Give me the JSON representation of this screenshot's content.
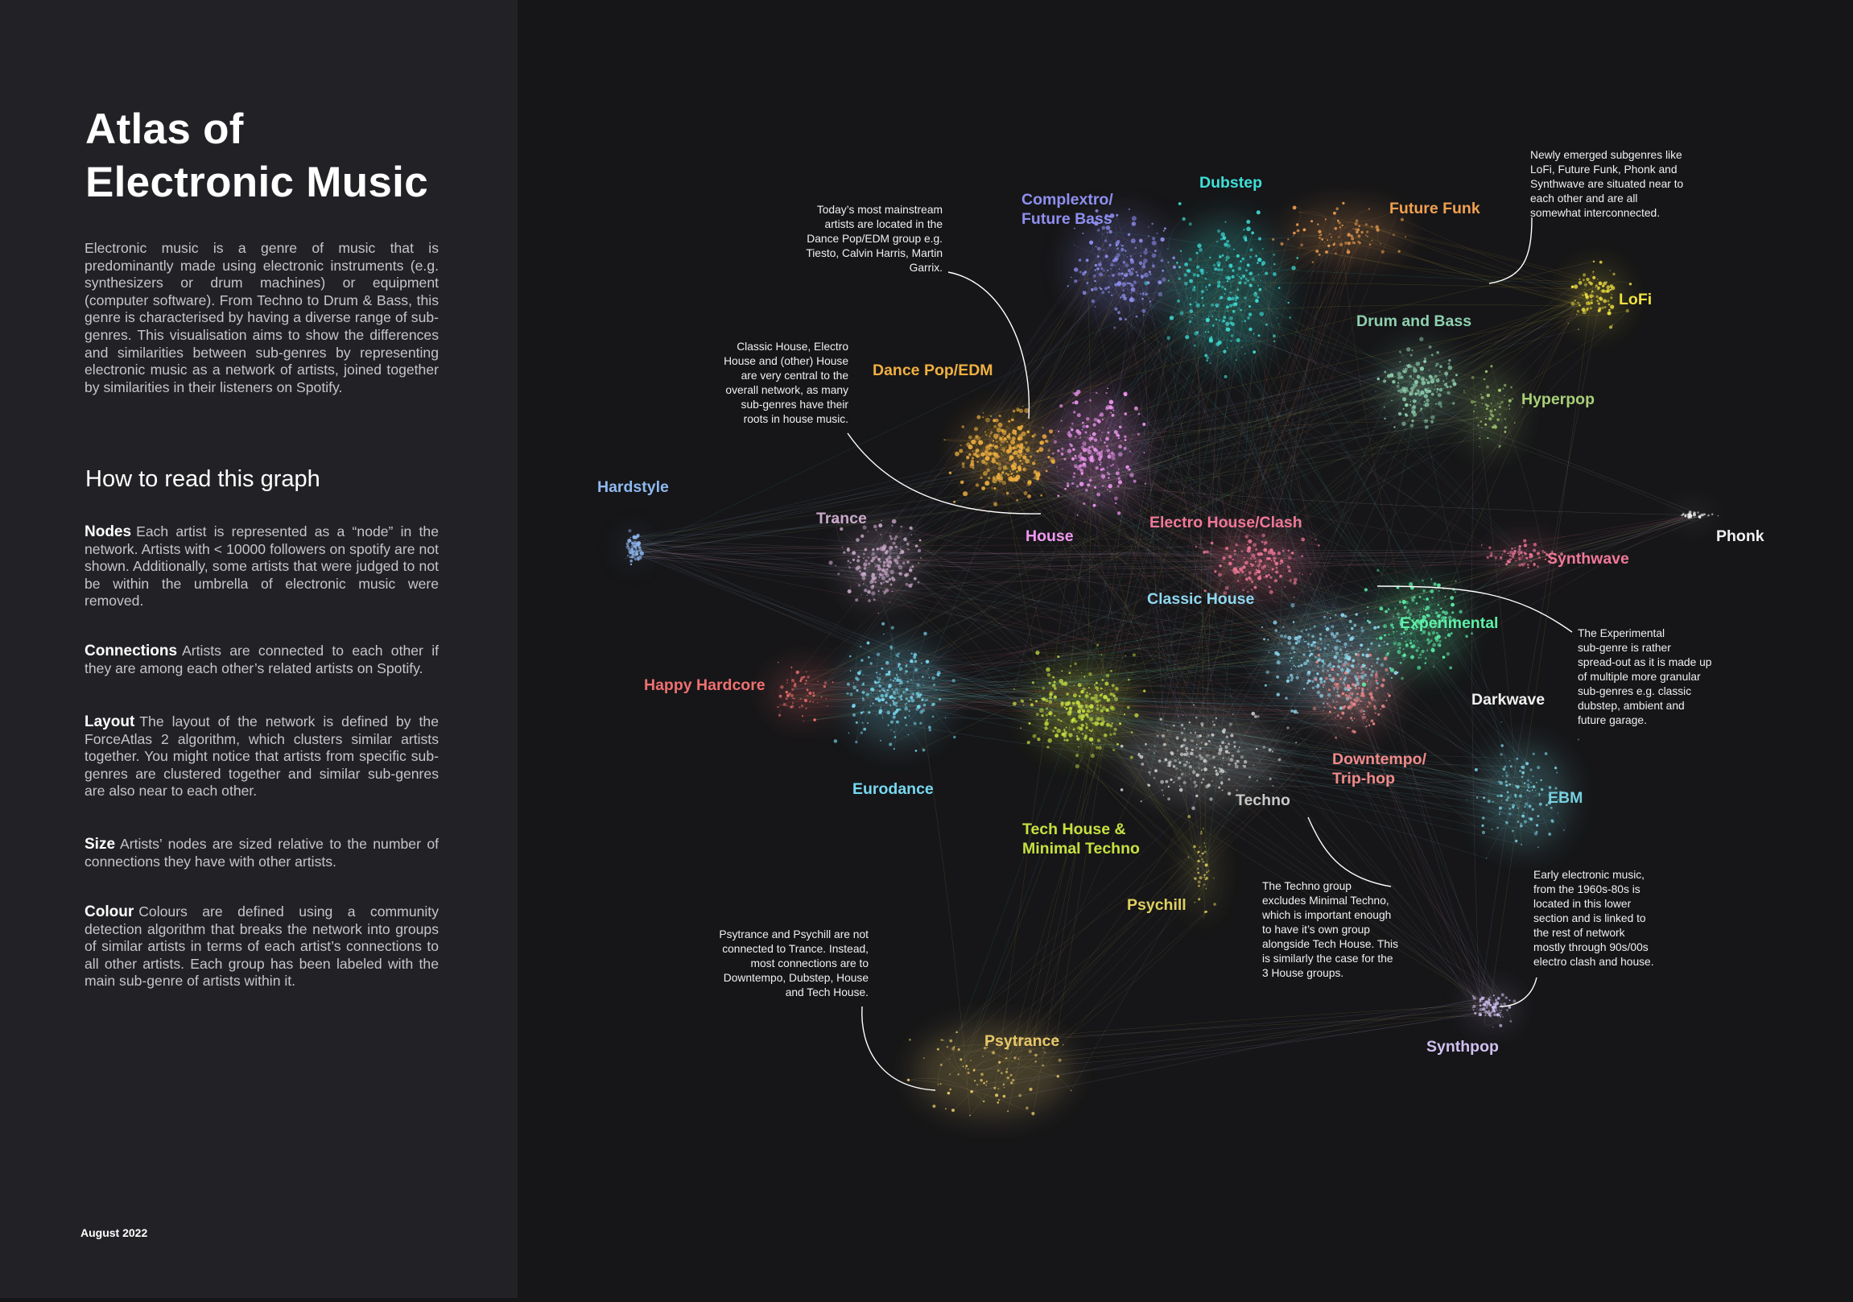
{
  "sidebar": {
    "title_line1": "Atlas of",
    "title_line2": "Electronic Music",
    "intro": "Electronic music is a genre of music that is predominantly made using electronic instruments (e.g. synthesizers or drum machines) or equipment (computer software). From Techno to Drum & Bass, this genre is characterised by having a diverse range of sub-genres. This visualisation aims to show the differences and similarities between sub-genres by representing electronic music as a network of artists, joined together by similarities in their listeners on Spotify.",
    "how_heading": "How to read this graph",
    "sections": [
      {
        "term": "Nodes",
        "text": "Each artist is represented as a “node” in the network. Artists with < 10000 followers on spotify are not shown. Additionally, some artists that were judged to not be within the umbrella of electronic music were removed."
      },
      {
        "term": "Connections",
        "text": "Artists are connected to each other if they are among each other’s related artists on Spotify."
      },
      {
        "term": "Layout",
        "text": "The layout of the network is defined by the ForceAtlas 2 algorithm, which clusters similar artists together. You might notice that artists from specific sub-genres are clustered together and similar sub-genres are also near to each other."
      },
      {
        "term": "Size",
        "text": "Artists’ nodes are sized relative to the number of connections they have with other artists."
      },
      {
        "term": "Colour",
        "text": "Colours are defined using a community detection algorithm that breaks the network into groups of similar artists in terms of each artist’s connections to all other artists. Each group has been labeled with the main sub-genre of artists within it."
      }
    ],
    "date": "August 2022"
  },
  "genres": {
    "complextro_l1": "Complextro/",
    "complextro_l2": "Future Bass",
    "dubstep": "Dubstep",
    "future_funk": "Future Funk",
    "lofi": "LoFi",
    "drum_and_bass": "Drum and Bass",
    "hyperpop": "Hyperpop",
    "dance_pop": "Dance Pop/EDM",
    "hardstyle": "Hardstyle",
    "trance": "Trance",
    "house": "House",
    "electro_house": "Electro House/Clash",
    "phonk": "Phonk",
    "synthwave": "Synthwave",
    "classic_house": "Classic House",
    "experimental": "Experimental",
    "happy_hardcore": "Happy Hardcore",
    "darkwave": "Darkwave",
    "downtempo_l1": "Downtempo/",
    "downtempo_l2": "Trip-hop",
    "eurodance": "Eurodance",
    "ebm": "EBM",
    "techno": "Techno",
    "tech_house_l1": "Tech House &",
    "tech_house_l2": "Minimal Techno",
    "psychill": "Psychill",
    "psytrance": "Psytrance",
    "synthpop": "Synthpop"
  },
  "colors": {
    "complextro": "#8f8ff0",
    "dubstep": "#3ee0d8",
    "future_funk": "#f0a050",
    "lofi": "#f0e040",
    "drum_and_bass": "#8fd0b0",
    "hyperpop": "#a8d078",
    "dance_pop": "#f0b040",
    "hardstyle": "#8fb8f0",
    "trance": "#c8a8c8",
    "house": "#f098f0",
    "electro_house": "#f07898",
    "phonk": "#f0f0f0",
    "synthwave": "#f07898",
    "classic_house": "#8fd8f0",
    "experimental": "#5ef0a8",
    "happy_hardcore": "#f07070",
    "darkwave": "#f0f0f0",
    "downtempo": "#f08a8a",
    "eurodance": "#78d8f0",
    "ebm": "#78d0e0",
    "techno": "#c8c8c8",
    "tech_house": "#c8e040",
    "psychill": "#e0d060",
    "psytrance": "#e8c868",
    "synthpop": "#d0c0f0"
  },
  "notes": {
    "mainstream": [
      "Today’s most mainstream",
      "artists are located in the",
      "Dance Pop/EDM group e.g.",
      "Tiesto, Calvin Harris, Martin",
      "Garrix."
    ],
    "classic_house": [
      "Classic House, Electro",
      "House and (other) House",
      "are very central to the",
      "overall network, as many",
      "sub-genres have their",
      "roots in house music."
    ],
    "newly_emerged": [
      "Newly emerged subgenres like",
      "LoFi, Future Funk, Phonk and",
      "Synthwave are situated near to",
      "each other and are all",
      "somewhat interconnected."
    ],
    "experimental": [
      "The Experimental",
      "sub-genre is rather",
      "spread-out as it is made up",
      "of multiple more granular",
      "sub-genres e.g. classic",
      "dubstep, ambient and",
      "future garage."
    ],
    "techno": [
      "The Techno group",
      "excludes Minimal Techno,",
      "which is important enough",
      "to have it’s own group",
      "alongside Tech House. This",
      "is similarly the case for the",
      "3 House groups."
    ],
    "early": [
      "Early electronic music,",
      "from the 1960s-80s is",
      "located in this lower",
      "section and is linked to",
      "the rest of network",
      "mostly through 90s/00s",
      "electro clash and house."
    ],
    "psytrance": [
      "Psytrance and Psychill are not",
      "connected to Trance. Instead,",
      "most connections are to",
      "Downtempo, Dubstep, House",
      "and Tech House."
    ]
  }
}
